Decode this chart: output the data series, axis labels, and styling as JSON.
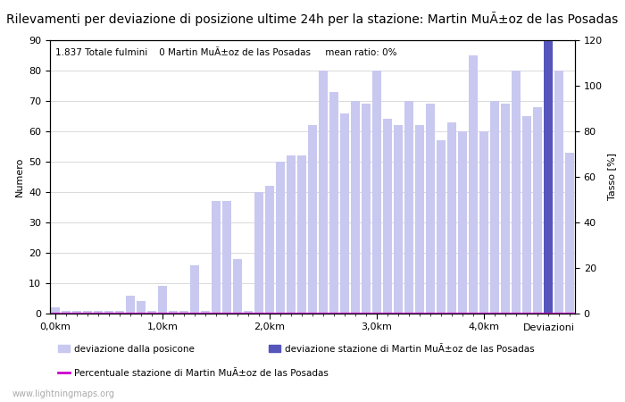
{
  "title": "Rilevamenti per deviazione di posizione ultime 24h per la stazione: Martin MuÃ±oz de las Posadas",
  "subtitle": "1.837 Totale fulmini    0 Martin MuÃ±oz de las Posadas     mean ratio: 0%",
  "ylabel_left": "Numero",
  "ylabel_right": "Tasso [%]",
  "x_tick_labels": [
    "0,0km",
    "1,0km",
    "2,0km",
    "3,0km",
    "4,0km"
  ],
  "x_tick_positions": [
    0,
    10,
    20,
    30,
    40
  ],
  "bar_values": [
    2,
    1,
    1,
    1,
    1,
    1,
    1,
    6,
    4,
    1,
    9,
    1,
    1,
    16,
    1,
    37,
    37,
    18,
    1,
    40,
    42,
    50,
    52,
    52,
    62,
    80,
    73,
    66,
    70,
    69,
    80,
    64,
    62,
    70,
    62,
    69,
    57,
    63,
    60,
    85,
    60,
    70,
    69,
    80,
    65,
    68,
    90,
    80,
    53
  ],
  "dark_bar_indices": [
    46
  ],
  "bar_color_light": "#c8c8f0",
  "bar_color_dark": "#5555bb",
  "line_color": "#cc00cc",
  "ylim_left": [
    0,
    90
  ],
  "ylim_right": [
    0,
    120
  ],
  "background_color": "#ffffff",
  "grid_color": "#cccccc",
  "legend_label_1": "deviazione dalla posicone",
  "legend_label_2": "deviazione stazione di Martin MuÃ±oz de las Posadas",
  "legend_label_3": "Percentuale stazione di Martin MuÃ±oz de las Posadas",
  "xlabel_right": "Deviazioni",
  "watermark": "www.lightningmaps.org",
  "title_fontsize": 10,
  "axis_fontsize": 8,
  "tick_fontsize": 8,
  "subtitle_fontsize": 7.5
}
